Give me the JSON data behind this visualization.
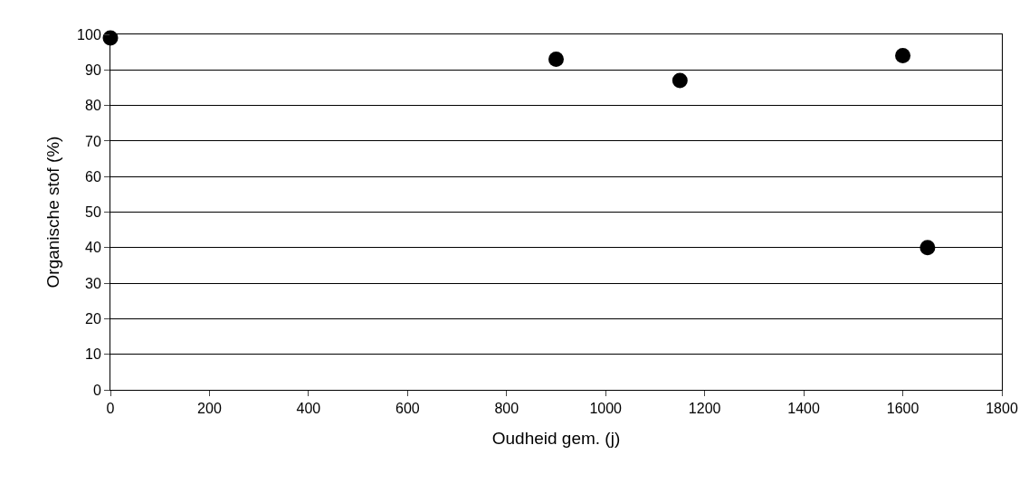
{
  "chart_data": {
    "type": "scatter",
    "xlabel": "Oudheid gem. (j)",
    "ylabel": "Organische stof (%)",
    "x": [
      0,
      900,
      1150,
      1600,
      1650
    ],
    "series": [
      {
        "color": "#000000",
        "values": [
          99,
          93,
          87,
          94,
          40
        ]
      }
    ],
    "xlim": [
      0,
      1800
    ],
    "xticks": [
      0,
      200,
      400,
      600,
      800,
      1000,
      1200,
      1400,
      1600,
      1800
    ],
    "ylim": [
      0,
      100
    ],
    "yticks": [
      0,
      10,
      20,
      30,
      40,
      50,
      60,
      70,
      80,
      90,
      100
    ],
    "grid": "y",
    "marker": "circle"
  }
}
